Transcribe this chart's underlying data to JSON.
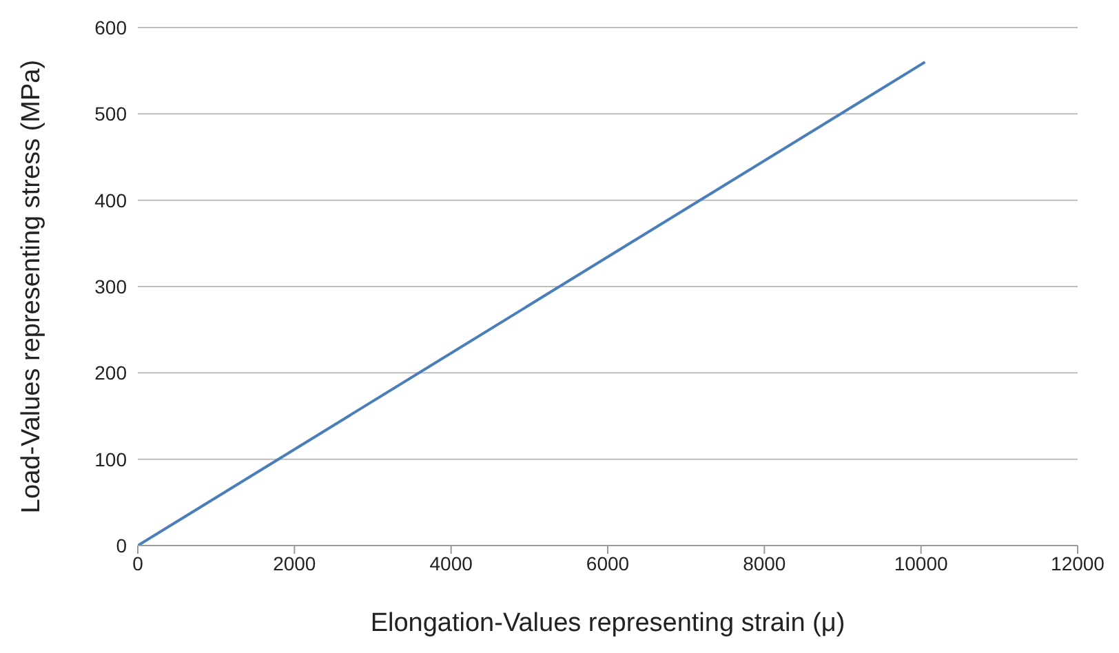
{
  "chart_data": {
    "type": "line",
    "xlabel": "Elongation-Values representing strain (μ)",
    "ylabel": "Load-Values representing stress (MPa)",
    "x": [
      0,
      10050
    ],
    "series": [
      {
        "color": "#4a7ebb",
        "values": [
          0,
          560
        ]
      }
    ],
    "xlim": [
      0,
      12000
    ],
    "xticks": [
      0,
      2000,
      4000,
      6000,
      8000,
      10000,
      12000
    ],
    "ylim": [
      0,
      600
    ],
    "yticks": [
      0,
      100,
      200,
      300,
      400,
      500,
      600
    ],
    "grid": "y",
    "legend": false,
    "marker": "none",
    "line_style": "solid"
  }
}
